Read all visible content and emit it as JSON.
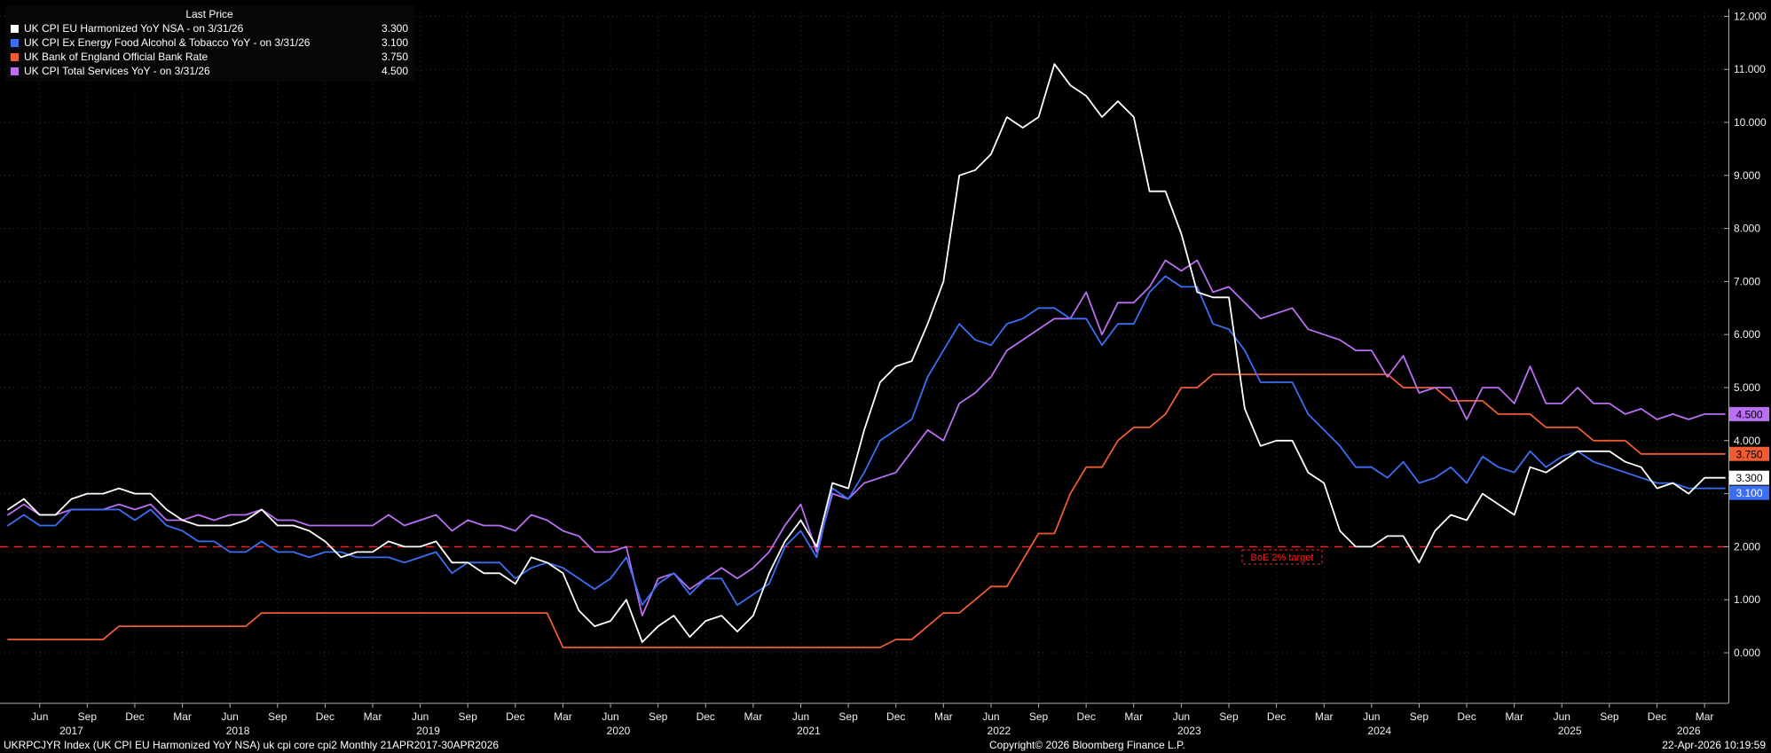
{
  "legend": {
    "header": "Last Price",
    "items": [
      {
        "label": "UK CPI EU Harmonized YoY NSA - on 3/31/26",
        "value": "3.300",
        "color": "#FFFFFF"
      },
      {
        "label": "UK CPI Ex Energy Food Alcohol & Tobacco YoY - on 3/31/26",
        "value": "3.100",
        "color": "#3C6EF5"
      },
      {
        "label": "UK Bank of England Official Bank Rate",
        "value": "3.750",
        "color": "#EF5B32"
      },
      {
        "label": "UK CPI Total Services YoY - on 3/31/26",
        "value": "4.500",
        "color": "#BA6EF2"
      }
    ]
  },
  "footer": {
    "left": "UKRPCJYR Index (UK CPI EU Harmonized YoY NSA) uk cpi core cpi2 Monthly 21APR2017-30APR2026",
    "center": "Copyright© 2026 Bloomberg Finance L.P.",
    "right": "22-Apr-2026 10:19:59"
  },
  "chart_data": {
    "type": "line",
    "title": "Last Price",
    "x_start": "Apr 2017",
    "x_end": "Mar 2026",
    "ylim": [
      -0.9,
      12.2
    ],
    "grid": true,
    "grid_color": "#363636",
    "background": "#000000",
    "y_ticks": [
      {
        "value": 0,
        "label": "0.000"
      },
      {
        "value": 1,
        "label": "1.000"
      },
      {
        "value": 2,
        "label": "2.000"
      },
      {
        "value": 3,
        "label": "3.000"
      },
      {
        "value": 4,
        "label": "4.000"
      },
      {
        "value": 5,
        "label": "5.000"
      },
      {
        "value": 6,
        "label": "6.000"
      },
      {
        "value": 7,
        "label": "7.000"
      },
      {
        "value": 8,
        "label": "8.000"
      },
      {
        "value": 9,
        "label": "9.000"
      },
      {
        "value": 10,
        "label": "10.000"
      },
      {
        "value": 11,
        "label": "11.000"
      },
      {
        "value": 12,
        "label": "12.000"
      }
    ],
    "x_ticks": [
      {
        "i": 2,
        "label": "Jun"
      },
      {
        "i": 5,
        "label": "Sep"
      },
      {
        "i": 8,
        "label": "Dec"
      },
      {
        "i": 11,
        "label": "Mar"
      },
      {
        "i": 14,
        "label": "Jun"
      },
      {
        "i": 17,
        "label": "Sep"
      },
      {
        "i": 20,
        "label": "Dec"
      },
      {
        "i": 23,
        "label": "Mar"
      },
      {
        "i": 26,
        "label": "Jun"
      },
      {
        "i": 29,
        "label": "Sep"
      },
      {
        "i": 32,
        "label": "Dec"
      },
      {
        "i": 35,
        "label": "Mar"
      },
      {
        "i": 38,
        "label": "Jun"
      },
      {
        "i": 41,
        "label": "Sep"
      },
      {
        "i": 44,
        "label": "Dec"
      },
      {
        "i": 47,
        "label": "Mar"
      },
      {
        "i": 50,
        "label": "Jun"
      },
      {
        "i": 53,
        "label": "Sep"
      },
      {
        "i": 56,
        "label": "Dec"
      },
      {
        "i": 59,
        "label": "Mar"
      },
      {
        "i": 62,
        "label": "Jun"
      },
      {
        "i": 65,
        "label": "Sep"
      },
      {
        "i": 68,
        "label": "Dec"
      },
      {
        "i": 71,
        "label": "Mar"
      },
      {
        "i": 74,
        "label": "Jun"
      },
      {
        "i": 77,
        "label": "Sep"
      },
      {
        "i": 80,
        "label": "Dec"
      },
      {
        "i": 83,
        "label": "Mar"
      },
      {
        "i": 86,
        "label": "Jun"
      },
      {
        "i": 89,
        "label": "Sep"
      },
      {
        "i": 92,
        "label": "Dec"
      },
      {
        "i": 95,
        "label": "Mar"
      },
      {
        "i": 98,
        "label": "Jun"
      },
      {
        "i": 101,
        "label": "Sep"
      },
      {
        "i": 104,
        "label": "Dec"
      },
      {
        "i": 107,
        "label": "Mar"
      }
    ],
    "years": [
      {
        "i": 4,
        "label": "2017"
      },
      {
        "i": 14.5,
        "label": "2018"
      },
      {
        "i": 26.5,
        "label": "2019"
      },
      {
        "i": 38.5,
        "label": "2020"
      },
      {
        "i": 50.5,
        "label": "2021"
      },
      {
        "i": 62.5,
        "label": "2022"
      },
      {
        "i": 74.5,
        "label": "2023"
      },
      {
        "i": 86.5,
        "label": "2024"
      },
      {
        "i": 98.5,
        "label": "2025"
      },
      {
        "i": 106,
        "label": "2026"
      }
    ],
    "target_line": {
      "value": 2.0,
      "label": "BoE 2% target",
      "color": "#FF1F1F"
    },
    "series": [
      {
        "name": "UK CPI EU Harmonized YoY NSA",
        "color": "#FFFFFF",
        "badge_text": "#000000",
        "last": "3.300",
        "values": [
          2.7,
          2.9,
          2.6,
          2.6,
          2.9,
          3.0,
          3.0,
          3.1,
          3.0,
          3.0,
          2.7,
          2.5,
          2.4,
          2.4,
          2.4,
          2.5,
          2.7,
          2.4,
          2.4,
          2.3,
          2.1,
          1.8,
          1.9,
          1.9,
          2.1,
          2.0,
          2.0,
          2.1,
          1.7,
          1.7,
          1.5,
          1.5,
          1.3,
          1.8,
          1.7,
          1.5,
          0.8,
          0.5,
          0.6,
          1.0,
          0.2,
          0.5,
          0.7,
          0.3,
          0.6,
          0.7,
          0.4,
          0.7,
          1.5,
          2.1,
          2.5,
          2.0,
          3.2,
          3.1,
          4.2,
          5.1,
          5.4,
          5.5,
          6.2,
          7.0,
          9.0,
          9.1,
          9.4,
          10.1,
          9.9,
          10.1,
          11.1,
          10.7,
          10.5,
          10.1,
          10.4,
          10.1,
          8.7,
          8.7,
          7.9,
          6.8,
          6.7,
          6.7,
          4.6,
          3.9,
          4.0,
          4.0,
          3.4,
          3.2,
          2.3,
          2.0,
          2.0,
          2.2,
          2.2,
          1.7,
          2.3,
          2.6,
          2.5,
          3.0,
          2.8,
          2.6,
          3.5,
          3.4,
          3.6,
          3.8,
          3.8,
          3.8,
          3.6,
          3.5,
          3.1,
          3.2,
          3.0,
          3.3
        ]
      },
      {
        "name": "UK CPI Ex Energy Food Alcohol & Tobacco YoY",
        "color": "#3C6EF5",
        "badge_text": "#FFFFFF",
        "last": "3.100",
        "values": [
          2.4,
          2.6,
          2.4,
          2.4,
          2.7,
          2.7,
          2.7,
          2.7,
          2.5,
          2.7,
          2.4,
          2.3,
          2.1,
          2.1,
          1.9,
          1.9,
          2.1,
          1.9,
          1.9,
          1.8,
          1.9,
          1.9,
          1.8,
          1.8,
          1.8,
          1.7,
          1.8,
          1.9,
          1.5,
          1.7,
          1.7,
          1.7,
          1.4,
          1.6,
          1.7,
          1.6,
          1.4,
          1.2,
          1.4,
          1.8,
          0.9,
          1.3,
          1.5,
          1.1,
          1.4,
          1.4,
          0.9,
          1.1,
          1.3,
          2.0,
          2.3,
          1.8,
          3.1,
          2.9,
          3.4,
          4.0,
          4.2,
          4.4,
          5.2,
          5.7,
          6.2,
          5.9,
          5.8,
          6.2,
          6.3,
          6.5,
          6.5,
          6.3,
          6.3,
          5.8,
          6.2,
          6.2,
          6.8,
          7.1,
          6.9,
          6.9,
          6.2,
          6.1,
          5.7,
          5.1,
          5.1,
          5.1,
          4.5,
          4.2,
          3.9,
          3.5,
          3.5,
          3.3,
          3.6,
          3.2,
          3.3,
          3.5,
          3.2,
          3.7,
          3.5,
          3.4,
          3.8,
          3.5,
          3.7,
          3.8,
          3.6,
          3.5,
          3.4,
          3.3,
          3.2,
          3.2,
          3.1,
          3.1
        ]
      },
      {
        "name": "UK Bank of England Official Bank Rate",
        "color": "#EF5B32",
        "badge_text": "#000000",
        "last": "3.750",
        "values": [
          0.25,
          0.25,
          0.25,
          0.25,
          0.25,
          0.25,
          0.25,
          0.5,
          0.5,
          0.5,
          0.5,
          0.5,
          0.5,
          0.5,
          0.5,
          0.5,
          0.75,
          0.75,
          0.75,
          0.75,
          0.75,
          0.75,
          0.75,
          0.75,
          0.75,
          0.75,
          0.75,
          0.75,
          0.75,
          0.75,
          0.75,
          0.75,
          0.75,
          0.75,
          0.75,
          0.1,
          0.1,
          0.1,
          0.1,
          0.1,
          0.1,
          0.1,
          0.1,
          0.1,
          0.1,
          0.1,
          0.1,
          0.1,
          0.1,
          0.1,
          0.1,
          0.1,
          0.1,
          0.1,
          0.1,
          0.1,
          0.25,
          0.25,
          0.5,
          0.75,
          0.75,
          1.0,
          1.25,
          1.25,
          1.75,
          2.25,
          2.25,
          3.0,
          3.5,
          3.5,
          4.0,
          4.25,
          4.25,
          4.5,
          5.0,
          5.0,
          5.25,
          5.25,
          5.25,
          5.25,
          5.25,
          5.25,
          5.25,
          5.25,
          5.25,
          5.25,
          5.25,
          5.25,
          5.0,
          5.0,
          5.0,
          4.75,
          4.75,
          4.75,
          4.5,
          4.5,
          4.5,
          4.25,
          4.25,
          4.25,
          4.0,
          4.0,
          4.0,
          3.75,
          3.75,
          3.75,
          3.75,
          3.75
        ]
      },
      {
        "name": "UK CPI Total Services YoY",
        "color": "#BA6EF2",
        "badge_text": "#000000",
        "last": "4.500",
        "values": [
          2.6,
          2.8,
          2.6,
          2.6,
          2.7,
          2.7,
          2.7,
          2.8,
          2.7,
          2.8,
          2.5,
          2.5,
          2.6,
          2.5,
          2.6,
          2.6,
          2.7,
          2.5,
          2.5,
          2.4,
          2.4,
          2.4,
          2.4,
          2.4,
          2.6,
          2.4,
          2.5,
          2.6,
          2.3,
          2.5,
          2.4,
          2.4,
          2.3,
          2.6,
          2.5,
          2.3,
          2.2,
          1.9,
          1.9,
          2.0,
          0.7,
          1.4,
          1.5,
          1.2,
          1.4,
          1.6,
          1.4,
          1.6,
          1.9,
          2.4,
          2.8,
          1.9,
          3.0,
          2.9,
          3.2,
          3.3,
          3.4,
          3.8,
          4.2,
          4.0,
          4.7,
          4.9,
          5.2,
          5.7,
          5.9,
          6.1,
          6.3,
          6.3,
          6.8,
          6.0,
          6.6,
          6.6,
          6.9,
          7.4,
          7.2,
          7.4,
          6.8,
          6.9,
          6.6,
          6.3,
          6.4,
          6.5,
          6.1,
          6.0,
          5.9,
          5.7,
          5.7,
          5.2,
          5.6,
          4.9,
          5.0,
          5.0,
          4.4,
          5.0,
          5.0,
          4.7,
          5.4,
          4.7,
          4.7,
          5.0,
          4.7,
          4.7,
          4.5,
          4.6,
          4.4,
          4.5,
          4.4,
          4.5
        ]
      }
    ]
  }
}
